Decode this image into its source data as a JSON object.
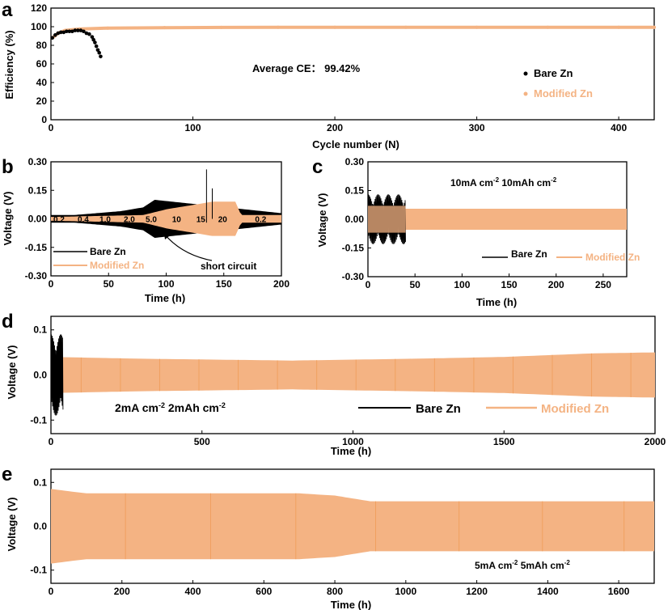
{
  "colors": {
    "bare": "#000000",
    "modified": "#f4b383",
    "modifiedLine": "#f0a060",
    "axis": "#000000"
  },
  "chart_data": [
    {
      "id": "a",
      "type": "scatter",
      "panel_label": "a",
      "xlabel": "Cycle number (N)",
      "ylabel": "Efficiency (%)",
      "xlim": [
        0,
        425
      ],
      "ylim": [
        0,
        120
      ],
      "xticks": [
        "0",
        "100",
        "200",
        "300",
        "400"
      ],
      "yticks": [
        "0",
        "20",
        "40",
        "60",
        "80",
        "100",
        "120"
      ],
      "annotation": "Average CE： 99.42%",
      "series": [
        {
          "name": "Bare Zn",
          "color": "#000000",
          "x": [
            1,
            3,
            5,
            7,
            9,
            11,
            13,
            15,
            17,
            19,
            21,
            23,
            25,
            27,
            29,
            30,
            31,
            32,
            33,
            34,
            35
          ],
          "y": [
            88,
            91,
            93,
            94,
            94,
            95,
            95,
            95,
            96,
            96,
            96,
            95,
            93,
            92,
            89,
            86,
            83,
            79,
            75,
            72,
            68
          ]
        },
        {
          "name": "Modified Zn",
          "color": "#f4b383",
          "x": [
            1,
            5,
            10,
            20,
            40,
            80,
            120,
            160,
            200,
            250,
            300,
            350,
            400,
            425
          ],
          "y": [
            88,
            93,
            96,
            97.5,
            98.5,
            99,
            99.2,
            99.3,
            99.4,
            99.4,
            99.4,
            99.4,
            99.4,
            99.4
          ]
        }
      ]
    },
    {
      "id": "b",
      "type": "line",
      "panel_label": "b",
      "xlabel": "Time (h)",
      "ylabel": "Voltage (V)",
      "xlim": [
        0,
        200
      ],
      "ylim": [
        -0.3,
        0.3
      ],
      "xticks": [
        "0",
        "50",
        "100",
        "150",
        "200"
      ],
      "yticks": [
        "-0.30",
        "-0.15",
        "0.00",
        "0.15",
        "0.30"
      ],
      "rate_labels": [
        {
          "x": 7,
          "text": "0.2"
        },
        {
          "x": 28,
          "text": "0.4"
        },
        {
          "x": 47,
          "text": "1.0"
        },
        {
          "x": 68,
          "text": "2.0"
        },
        {
          "x": 87,
          "text": "5.0"
        },
        {
          "x": 109,
          "text": "10"
        },
        {
          "x": 130,
          "text": "15"
        },
        {
          "x": 149,
          "text": "20"
        },
        {
          "x": 182,
          "text": "0.2"
        }
      ],
      "annotation": "short circuit",
      "series": [
        {
          "name": "Bare Zn",
          "color": "#000000",
          "segments": [
            [
              0,
              0.02
            ],
            [
              20,
              0.02
            ],
            [
              40,
              0.03
            ],
            [
              60,
              0.04
            ],
            [
              80,
              0.06
            ],
            [
              90,
              0.1
            ],
            [
              200,
              0.03
            ]
          ]
        },
        {
          "name": "Modified Zn",
          "color": "#f4b383",
          "segments": [
            [
              0,
              0.01
            ],
            [
              40,
              0.015
            ],
            [
              80,
              0.02
            ],
            [
              100,
              0.05
            ],
            [
              120,
              0.07
            ],
            [
              140,
              0.09
            ],
            [
              160,
              0.09
            ],
            [
              165,
              0.02
            ],
            [
              200,
              0.02
            ]
          ]
        }
      ]
    },
    {
      "id": "c",
      "type": "line",
      "panel_label": "c",
      "xlabel": "Time (h)",
      "ylabel": "Voltage (V)",
      "xlim": [
        0,
        275
      ],
      "ylim": [
        -0.3,
        0.3
      ],
      "xticks": [
        "0",
        "50",
        "100",
        "150",
        "200",
        "250"
      ],
      "yticks": [
        "-0.30",
        "-0.15",
        "0.00",
        "0.15",
        "0.30"
      ],
      "condition": [
        "10mA cm",
        "-2",
        "  10mAh cm",
        "-2"
      ],
      "series": [
        {
          "name": "Bare Zn",
          "color": "#000000",
          "end": 40,
          "amp": 0.13
        },
        {
          "name": "Modified Zn",
          "color": "#f4b383",
          "end": 275,
          "amp": 0.055
        }
      ]
    },
    {
      "id": "d",
      "type": "line",
      "panel_label": "d",
      "xlabel": "Time (h)",
      "ylabel": "Voltage (V)",
      "xlim": [
        0,
        2000
      ],
      "ylim": [
        -0.13,
        0.13
      ],
      "xticks": [
        "0",
        "500",
        "1000",
        "1500",
        "2000"
      ],
      "yticks": [
        "-0.1",
        "0.0",
        "0.1"
      ],
      "condition": [
        "2mA cm",
        "-2",
        "  2mAh cm",
        "-2"
      ],
      "series": [
        {
          "name": "Bare Zn",
          "color": "#000000",
          "end": 40,
          "amp": 0.09
        },
        {
          "name": "Modified Zn",
          "color": "#f4b383",
          "end": 2000,
          "amp": 0.04
        }
      ]
    },
    {
      "id": "e",
      "type": "line",
      "panel_label": "e",
      "xlabel": "Time (h)",
      "ylabel": "Voltage (V)",
      "xlim": [
        0,
        1700
      ],
      "ylim": [
        -0.13,
        0.13
      ],
      "xticks": [
        "0",
        "200",
        "400",
        "600",
        "800",
        "1000",
        "1200",
        "1400",
        "1600"
      ],
      "yticks": [
        "-0.1",
        "0.0",
        "0.1"
      ],
      "condition": [
        "5mA cm",
        "-2",
        "  5mAh cm",
        "-2"
      ],
      "series": [
        {
          "name": "Modified Zn",
          "color": "#f4b383",
          "end": 1700,
          "envelope": [
            [
              0,
              0.085
            ],
            [
              100,
              0.075
            ],
            [
              700,
              0.075
            ],
            [
              800,
              0.07
            ],
            [
              900,
              0.057
            ],
            [
              1700,
              0.057
            ]
          ]
        }
      ]
    }
  ]
}
